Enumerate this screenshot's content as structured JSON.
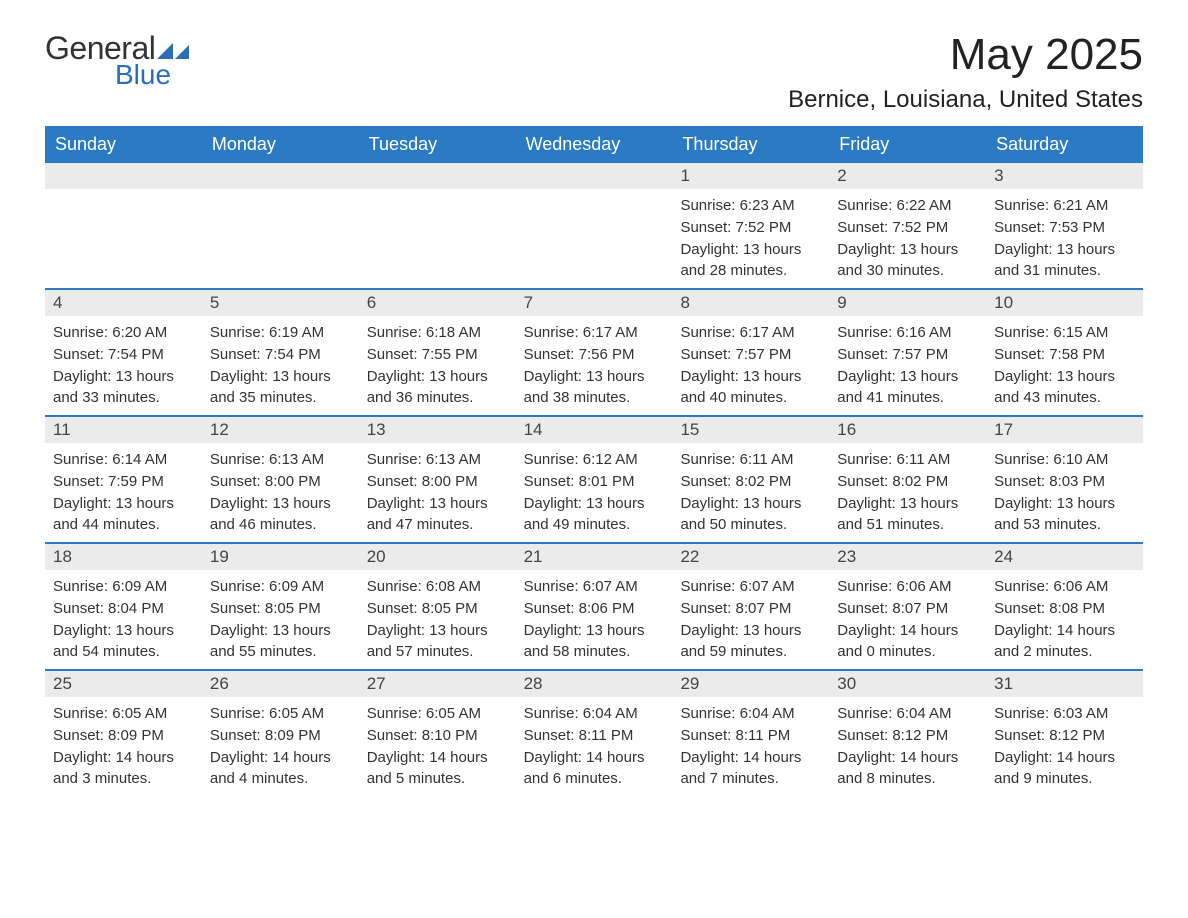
{
  "logo": {
    "text_general": "General",
    "text_blue": "Blue",
    "icon_color": "#2a6eb8"
  },
  "header": {
    "month_title": "May 2025",
    "location": "Bernice, Louisiana, United States"
  },
  "colors": {
    "header_bg": "#2a7ac4",
    "header_text": "#ffffff",
    "daynum_bg": "#ebebeb",
    "border": "#2a7ac4",
    "text": "#333333"
  },
  "day_headers": [
    "Sunday",
    "Monday",
    "Tuesday",
    "Wednesday",
    "Thursday",
    "Friday",
    "Saturday"
  ],
  "labels": {
    "sunrise": "Sunrise:",
    "sunset": "Sunset:",
    "daylight": "Daylight:"
  },
  "weeks": [
    [
      {
        "empty": true
      },
      {
        "empty": true
      },
      {
        "empty": true
      },
      {
        "empty": true
      },
      {
        "day": "1",
        "sunrise": "6:23 AM",
        "sunset": "7:52 PM",
        "daylight": "13 hours and 28 minutes."
      },
      {
        "day": "2",
        "sunrise": "6:22 AM",
        "sunset": "7:52 PM",
        "daylight": "13 hours and 30 minutes."
      },
      {
        "day": "3",
        "sunrise": "6:21 AM",
        "sunset": "7:53 PM",
        "daylight": "13 hours and 31 minutes."
      }
    ],
    [
      {
        "day": "4",
        "sunrise": "6:20 AM",
        "sunset": "7:54 PM",
        "daylight": "13 hours and 33 minutes."
      },
      {
        "day": "5",
        "sunrise": "6:19 AM",
        "sunset": "7:54 PM",
        "daylight": "13 hours and 35 minutes."
      },
      {
        "day": "6",
        "sunrise": "6:18 AM",
        "sunset": "7:55 PM",
        "daylight": "13 hours and 36 minutes."
      },
      {
        "day": "7",
        "sunrise": "6:17 AM",
        "sunset": "7:56 PM",
        "daylight": "13 hours and 38 minutes."
      },
      {
        "day": "8",
        "sunrise": "6:17 AM",
        "sunset": "7:57 PM",
        "daylight": "13 hours and 40 minutes."
      },
      {
        "day": "9",
        "sunrise": "6:16 AM",
        "sunset": "7:57 PM",
        "daylight": "13 hours and 41 minutes."
      },
      {
        "day": "10",
        "sunrise": "6:15 AM",
        "sunset": "7:58 PM",
        "daylight": "13 hours and 43 minutes."
      }
    ],
    [
      {
        "day": "11",
        "sunrise": "6:14 AM",
        "sunset": "7:59 PM",
        "daylight": "13 hours and 44 minutes."
      },
      {
        "day": "12",
        "sunrise": "6:13 AM",
        "sunset": "8:00 PM",
        "daylight": "13 hours and 46 minutes."
      },
      {
        "day": "13",
        "sunrise": "6:13 AM",
        "sunset": "8:00 PM",
        "daylight": "13 hours and 47 minutes."
      },
      {
        "day": "14",
        "sunrise": "6:12 AM",
        "sunset": "8:01 PM",
        "daylight": "13 hours and 49 minutes."
      },
      {
        "day": "15",
        "sunrise": "6:11 AM",
        "sunset": "8:02 PM",
        "daylight": "13 hours and 50 minutes."
      },
      {
        "day": "16",
        "sunrise": "6:11 AM",
        "sunset": "8:02 PM",
        "daylight": "13 hours and 51 minutes."
      },
      {
        "day": "17",
        "sunrise": "6:10 AM",
        "sunset": "8:03 PM",
        "daylight": "13 hours and 53 minutes."
      }
    ],
    [
      {
        "day": "18",
        "sunrise": "6:09 AM",
        "sunset": "8:04 PM",
        "daylight": "13 hours and 54 minutes."
      },
      {
        "day": "19",
        "sunrise": "6:09 AM",
        "sunset": "8:05 PM",
        "daylight": "13 hours and 55 minutes."
      },
      {
        "day": "20",
        "sunrise": "6:08 AM",
        "sunset": "8:05 PM",
        "daylight": "13 hours and 57 minutes."
      },
      {
        "day": "21",
        "sunrise": "6:07 AM",
        "sunset": "8:06 PM",
        "daylight": "13 hours and 58 minutes."
      },
      {
        "day": "22",
        "sunrise": "6:07 AM",
        "sunset": "8:07 PM",
        "daylight": "13 hours and 59 minutes."
      },
      {
        "day": "23",
        "sunrise": "6:06 AM",
        "sunset": "8:07 PM",
        "daylight": "14 hours and 0 minutes."
      },
      {
        "day": "24",
        "sunrise": "6:06 AM",
        "sunset": "8:08 PM",
        "daylight": "14 hours and 2 minutes."
      }
    ],
    [
      {
        "day": "25",
        "sunrise": "6:05 AM",
        "sunset": "8:09 PM",
        "daylight": "14 hours and 3 minutes."
      },
      {
        "day": "26",
        "sunrise": "6:05 AM",
        "sunset": "8:09 PM",
        "daylight": "14 hours and 4 minutes."
      },
      {
        "day": "27",
        "sunrise": "6:05 AM",
        "sunset": "8:10 PM",
        "daylight": "14 hours and 5 minutes."
      },
      {
        "day": "28",
        "sunrise": "6:04 AM",
        "sunset": "8:11 PM",
        "daylight": "14 hours and 6 minutes."
      },
      {
        "day": "29",
        "sunrise": "6:04 AM",
        "sunset": "8:11 PM",
        "daylight": "14 hours and 7 minutes."
      },
      {
        "day": "30",
        "sunrise": "6:04 AM",
        "sunset": "8:12 PM",
        "daylight": "14 hours and 8 minutes."
      },
      {
        "day": "31",
        "sunrise": "6:03 AM",
        "sunset": "8:12 PM",
        "daylight": "14 hours and 9 minutes."
      }
    ]
  ]
}
